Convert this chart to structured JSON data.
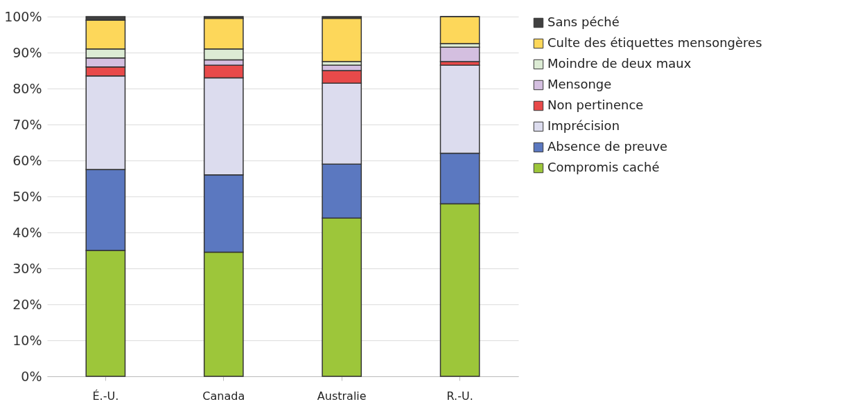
{
  "chart_data": {
    "type": "bar",
    "stacked": true,
    "categories": [
      "É.-U.",
      "Canada",
      "Australie",
      "R.-U."
    ],
    "series": [
      {
        "name": "Compromis caché",
        "color": "#9dc63a",
        "values": [
          35,
          34.5,
          44,
          48
        ]
      },
      {
        "name": "Absence de preuve",
        "color": "#5b78c0",
        "values": [
          22.5,
          21.5,
          15,
          14
        ]
      },
      {
        "name": "Imprécision",
        "color": "#dcdcee",
        "values": [
          26,
          27,
          22.5,
          24.5
        ]
      },
      {
        "name": "Non pertinence",
        "color": "#e84a4a",
        "values": [
          2.5,
          3.5,
          3.5,
          1
        ]
      },
      {
        "name": "Mensonge",
        "color": "#d4bfe0",
        "values": [
          2.5,
          1.5,
          1.5,
          4
        ]
      },
      {
        "name": "Moindre de deux maux",
        "color": "#dcebd4",
        "values": [
          2.5,
          3,
          1,
          1
        ]
      },
      {
        "name": "Culte des étiquettes mensongères",
        "color": "#fdd75a",
        "values": [
          8,
          8.5,
          12,
          7.5
        ]
      },
      {
        "name": "Sans péché",
        "color": "#404040",
        "values": [
          1,
          0.5,
          0.5,
          0
        ]
      }
    ],
    "ylim": [
      0,
      100
    ],
    "yticks": [
      {
        "value": 0,
        "label": "0%"
      },
      {
        "value": 10,
        "label": "10%"
      },
      {
        "value": 20,
        "label": "20%"
      },
      {
        "value": 30,
        "label": "30%"
      },
      {
        "value": 40,
        "label": "40%"
      },
      {
        "value": 50,
        "label": "50%"
      },
      {
        "value": 60,
        "label": "60%"
      },
      {
        "value": 70,
        "label": "70%"
      },
      {
        "value": 80,
        "label": "80%"
      },
      {
        "value": 90,
        "label": "90%"
      },
      {
        "value": 100,
        "label": "100%"
      }
    ],
    "grid": "y",
    "legend": "right"
  }
}
